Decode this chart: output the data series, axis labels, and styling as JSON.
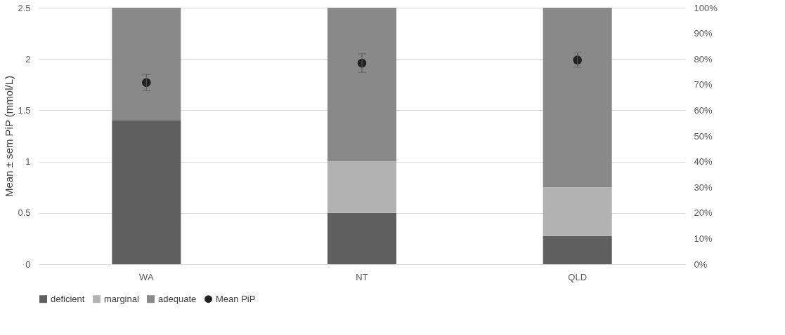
{
  "chart_data": {
    "type": "bar",
    "stacked": true,
    "ylabel": "Mean ± sem PiP (mmol/L)",
    "categories": [
      "WA",
      "NT",
      "QLD"
    ],
    "series": [
      {
        "name": "deficient",
        "color": "#5f5f5f",
        "axis": "y2",
        "values": [
          56,
          20,
          11
        ]
      },
      {
        "name": "marginal",
        "color": "#b2b2b2",
        "axis": "y2",
        "values": [
          0,
          20,
          19
        ]
      },
      {
        "name": "adequate",
        "color": "#898989",
        "axis": "y2",
        "values": [
          44,
          60,
          70
        ]
      },
      {
        "name": "Mean PiP",
        "type": "scatter",
        "color": "#222222",
        "values": [
          1.77,
          1.96,
          1.99
        ],
        "errors": [
          0.08,
          0.09,
          0.07
        ]
      }
    ],
    "ylim": [
      0,
      2.5
    ],
    "yticks": [
      0,
      0.5,
      1,
      1.5,
      2,
      2.5
    ],
    "y2lim": [
      0,
      100
    ],
    "y2ticks": [
      {
        "value": 0,
        "label": "0%"
      },
      {
        "value": 10,
        "label": "10%"
      },
      {
        "value": 20,
        "label": "20%"
      },
      {
        "value": 30,
        "label": "30%"
      },
      {
        "value": 40,
        "label": "40%"
      },
      {
        "value": 50,
        "label": "50%"
      },
      {
        "value": 60,
        "label": "60%"
      },
      {
        "value": 70,
        "label": "70%"
      },
      {
        "value": 80,
        "label": "80%"
      },
      {
        "value": 90,
        "label": "90%"
      },
      {
        "value": 100,
        "label": "100%"
      }
    ],
    "grid": "y",
    "legend": "bottom",
    "marker": "circle"
  }
}
